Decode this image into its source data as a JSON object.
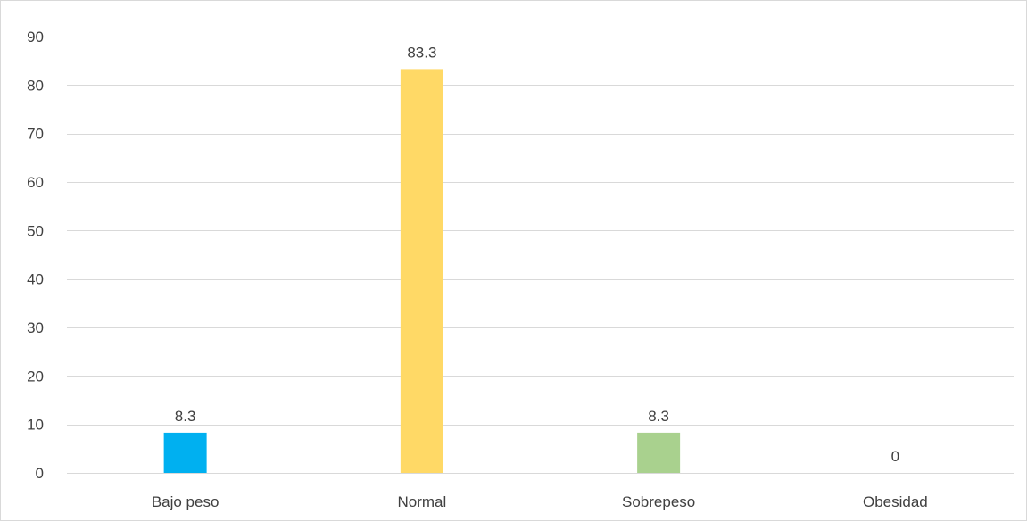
{
  "chart_data": {
    "type": "bar",
    "title": "",
    "xlabel": "",
    "ylabel": "",
    "categories": [
      "Bajo peso",
      "Normal",
      "Sobrepeso",
      "Obesidad"
    ],
    "values": [
      8.3,
      83.3,
      8.3,
      0
    ],
    "data_labels": [
      "8.3",
      "83.3",
      "8.3",
      "0"
    ],
    "colors": [
      "#00b0f0",
      "#ffd966",
      "#a9d18e",
      "#ed7d31"
    ],
    "ylim": [
      0,
      90
    ],
    "yticks": [
      0,
      10,
      20,
      30,
      40,
      50,
      60,
      70,
      80,
      90
    ],
    "grid": true,
    "legend": "none"
  }
}
